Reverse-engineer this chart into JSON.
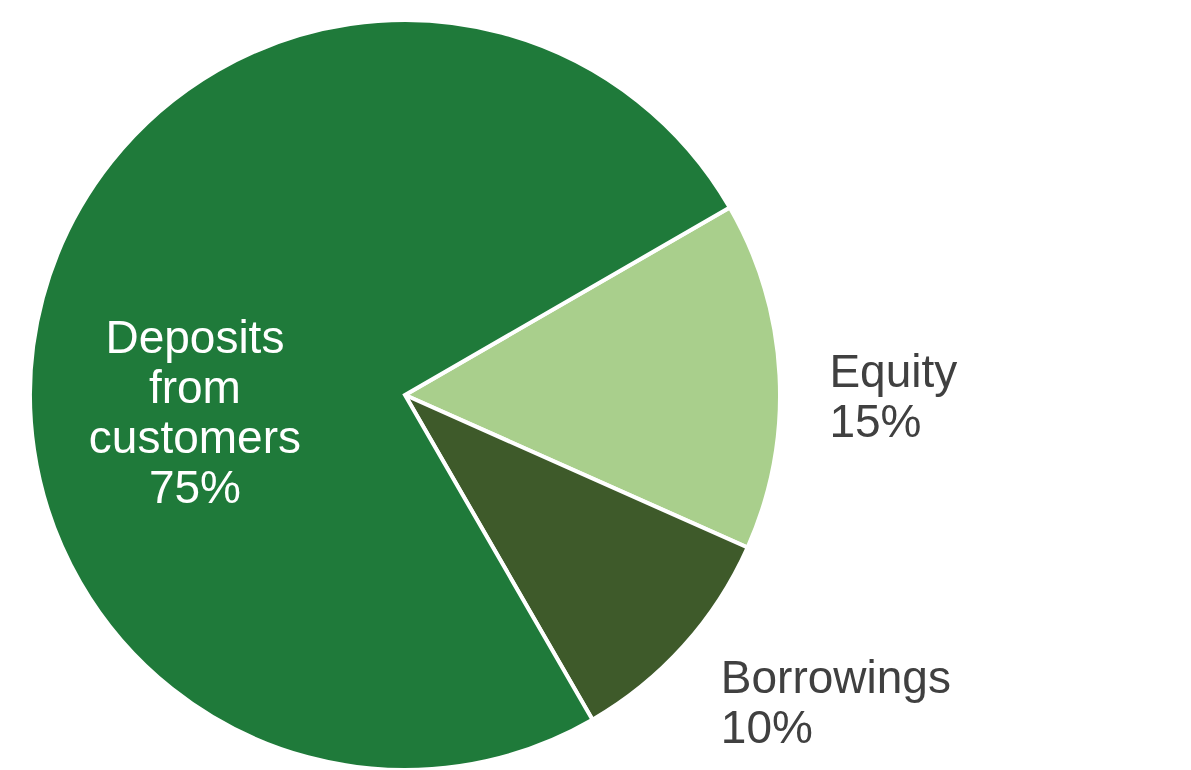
{
  "chart_data": {
    "type": "pie",
    "categories": [
      "Equity",
      "Borrowings",
      "Deposits from customers"
    ],
    "values": [
      15,
      10,
      75
    ],
    "value_labels": [
      "15%",
      "10%",
      "75%"
    ],
    "colors": [
      "#a9cf8c",
      "#3e5a2a",
      "#1f7a3a"
    ],
    "legend": false
  }
}
